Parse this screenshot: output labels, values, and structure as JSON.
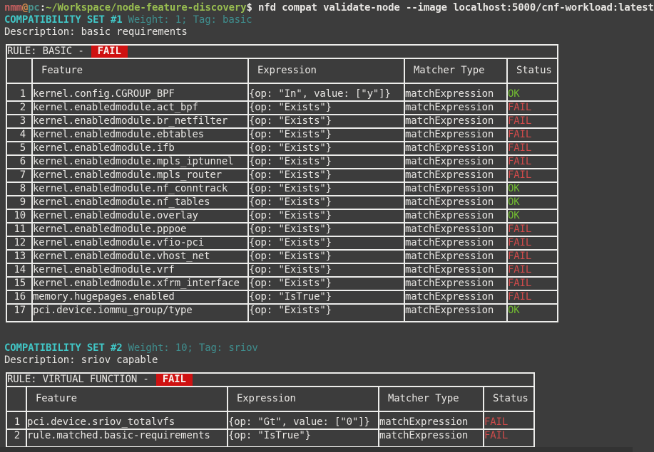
{
  "colors": {
    "bg": "#3c3c3c",
    "fg": "#e8e6e3",
    "border": "#ededeb",
    "prompt-user": "#c96060",
    "prompt-at": "#d28b4e",
    "prompt-host": "#4a948e",
    "prompt-path": "#98bd50",
    "title-cyan": "#41c7c7",
    "meta-teal": "#3f8f8f",
    "ok-green": "#72bc31",
    "fail-red": "#d14b4b",
    "badge-bg": "#cf1111",
    "badge-text": "#f6f2ee"
  },
  "terminal": {
    "prompt": {
      "user": "nmm",
      "at": "@",
      "host": "pc",
      "separator": ":",
      "path": "~/Workspace/node-feature-discovery",
      "symbol": "$ "
    },
    "command": "nfd compat validate-node --image localhost:5000/cnf-workload:latest"
  },
  "sets": [
    {
      "title": "COMPATIBILITY SET #1",
      "meta": "Weight: 1; Tag: basic",
      "description": "Description: basic requirements",
      "rule_label": "RULE: BASIC -",
      "rule_status": "FAIL",
      "columns": {
        "num": "",
        "feature": "Feature",
        "expression": "Expression",
        "matcher": "Matcher Type",
        "status": "Status"
      },
      "rows": [
        {
          "num": "1",
          "feature": "kernel.config.CGROUP_BPF",
          "expression": "{op: \"In\", value: [\"y\"]}",
          "matcher": "matchExpression",
          "status": "OK"
        },
        {
          "num": "2",
          "feature": "kernel.enabledmodule.act_bpf",
          "expression": "{op: \"Exists\"}",
          "matcher": "matchExpression",
          "status": "FAIL"
        },
        {
          "num": "3",
          "feature": "kernel.enabledmodule.br_netfilter",
          "expression": "{op: \"Exists\"}",
          "matcher": "matchExpression",
          "status": "FAIL"
        },
        {
          "num": "4",
          "feature": "kernel.enabledmodule.ebtables",
          "expression": "{op: \"Exists\"}",
          "matcher": "matchExpression",
          "status": "FAIL"
        },
        {
          "num": "5",
          "feature": "kernel.enabledmodule.ifb",
          "expression": "{op: \"Exists\"}",
          "matcher": "matchExpression",
          "status": "FAIL"
        },
        {
          "num": "6",
          "feature": "kernel.enabledmodule.mpls_iptunnel",
          "expression": "{op: \"Exists\"}",
          "matcher": "matchExpression",
          "status": "FAIL"
        },
        {
          "num": "7",
          "feature": "kernel.enabledmodule.mpls_router",
          "expression": "{op: \"Exists\"}",
          "matcher": "matchExpression",
          "status": "FAIL"
        },
        {
          "num": "8",
          "feature": "kernel.enabledmodule.nf_conntrack",
          "expression": "{op: \"Exists\"}",
          "matcher": "matchExpression",
          "status": "OK"
        },
        {
          "num": "9",
          "feature": "kernel.enabledmodule.nf_tables",
          "expression": "{op: \"Exists\"}",
          "matcher": "matchExpression",
          "status": "OK"
        },
        {
          "num": "10",
          "feature": "kernel.enabledmodule.overlay",
          "expression": "{op: \"Exists\"}",
          "matcher": "matchExpression",
          "status": "OK"
        },
        {
          "num": "11",
          "feature": "kernel.enabledmodule.pppoe",
          "expression": "{op: \"Exists\"}",
          "matcher": "matchExpression",
          "status": "FAIL"
        },
        {
          "num": "12",
          "feature": "kernel.enabledmodule.vfio-pci",
          "expression": "{op: \"Exists\"}",
          "matcher": "matchExpression",
          "status": "FAIL"
        },
        {
          "num": "13",
          "feature": "kernel.enabledmodule.vhost_net",
          "expression": "{op: \"Exists\"}",
          "matcher": "matchExpression",
          "status": "FAIL"
        },
        {
          "num": "14",
          "feature": "kernel.enabledmodule.vrf",
          "expression": "{op: \"Exists\"}",
          "matcher": "matchExpression",
          "status": "FAIL"
        },
        {
          "num": "15",
          "feature": "kernel.enabledmodule.xfrm_interface",
          "expression": "{op: \"Exists\"}",
          "matcher": "matchExpression",
          "status": "FAIL"
        },
        {
          "num": "16",
          "feature": "memory.hugepages.enabled",
          "expression": "{op: \"IsTrue\"}",
          "matcher": "matchExpression",
          "status": "FAIL"
        },
        {
          "num": "17",
          "feature": "pci.device.iommu_group/type",
          "expression": "{op: \"Exists\"}",
          "matcher": "matchExpression",
          "status": "OK"
        }
      ]
    },
    {
      "title": "COMPATIBILITY SET #2",
      "meta": "Weight: 10; Tag: sriov",
      "description": "Description: sriov capable",
      "rule_label": "RULE: VIRTUAL FUNCTION -",
      "rule_status": "FAIL",
      "columns": {
        "num": "",
        "feature": "Feature",
        "expression": "Expression",
        "matcher": "Matcher Type",
        "status": "Status"
      },
      "rows": [
        {
          "num": "1",
          "feature": "pci.device.sriov_totalvfs",
          "expression": "{op: \"Gt\", value: [\"0\"]}",
          "matcher": "matchExpression",
          "status": "FAIL"
        },
        {
          "num": "2",
          "feature": "rule.matched.basic-requirements",
          "expression": "{op: \"IsTrue\"}",
          "matcher": "matchExpression",
          "status": "FAIL"
        }
      ]
    }
  ]
}
